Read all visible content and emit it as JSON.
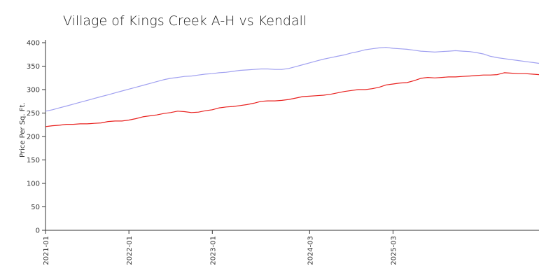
{
  "chart_data": {
    "type": "line",
    "title": "Village of Kings Creek A-H vs Kendall",
    "xlabel": "",
    "ylabel": "Price Per Sq. Ft.",
    "ylim": [
      0,
      400
    ],
    "yticks": [
      0,
      50,
      100,
      150,
      200,
      250,
      300,
      350,
      400
    ],
    "xticks": [
      "2021-01",
      "2022-01",
      "2023-01",
      "2024-03",
      "2025-03"
    ],
    "grid": false,
    "legend": "none",
    "x": [
      "2021-01",
      "2021-02",
      "2021-03",
      "2021-04",
      "2021-05",
      "2021-06",
      "2021-07",
      "2021-08",
      "2021-09",
      "2021-10",
      "2021-11",
      "2021-12",
      "2022-01",
      "2022-02",
      "2022-03",
      "2022-04",
      "2022-05",
      "2022-06",
      "2022-07",
      "2022-08",
      "2022-09",
      "2022-10",
      "2022-11",
      "2022-12",
      "2023-01",
      "2023-02",
      "2023-03",
      "2023-04",
      "2023-05",
      "2023-06",
      "2023-07",
      "2023-08",
      "2023-09",
      "2023-10",
      "2023-11",
      "2023-12",
      "2024-01",
      "2024-02",
      "2024-03",
      "2024-04",
      "2024-05",
      "2024-06",
      "2024-07",
      "2024-08",
      "2024-09",
      "2024-10",
      "2024-11",
      "2024-12",
      "2025-01",
      "2025-02",
      "2025-03",
      "2025-04",
      "2025-05",
      "2025-06",
      "2025-07",
      "2025-08",
      "2025-09",
      "2025-10",
      "2025-11",
      "2025-12",
      "2026-01",
      "2026-02",
      "2026-03",
      "2026-04",
      "2026-05",
      "2026-06",
      "2026-07",
      "2026-08",
      "2026-09",
      "2026-10",
      "2026-11",
      "2026-12"
    ],
    "series": [
      {
        "color": "#a0a0f0",
        "values": [
          254,
          257,
          261,
          265,
          269,
          273,
          277,
          281,
          285,
          289,
          293,
          297,
          301,
          305,
          309,
          313,
          317,
          321,
          324,
          326,
          328,
          329,
          331,
          333,
          334,
          336,
          337,
          339,
          341,
          342,
          343,
          344,
          344,
          343,
          343,
          345,
          349,
          353,
          357,
          361,
          365,
          368,
          371,
          374,
          378,
          381,
          385,
          387,
          389,
          390,
          388,
          387,
          386,
          384,
          382,
          381,
          380,
          381,
          382,
          383,
          382,
          381,
          379,
          376,
          371,
          368,
          366,
          364,
          362,
          360,
          358,
          356
        ]
      },
      {
        "color": "#e8201e",
        "values": [
          221,
          223,
          224,
          226,
          226,
          227,
          227,
          228,
          229,
          232,
          233,
          233,
          235,
          238,
          242,
          244,
          246,
          249,
          251,
          254,
          253,
          251,
          252,
          255,
          257,
          261,
          263,
          264,
          266,
          268,
          271,
          275,
          276,
          276,
          277,
          279,
          282,
          285,
          286,
          287,
          288,
          290,
          293,
          296,
          298,
          300,
          300,
          302,
          305,
          310,
          312,
          314,
          315,
          319,
          324,
          326,
          325,
          326,
          327,
          327,
          328,
          329,
          330,
          331,
          331,
          332,
          336,
          335,
          334,
          334,
          333,
          332
        ]
      }
    ]
  }
}
